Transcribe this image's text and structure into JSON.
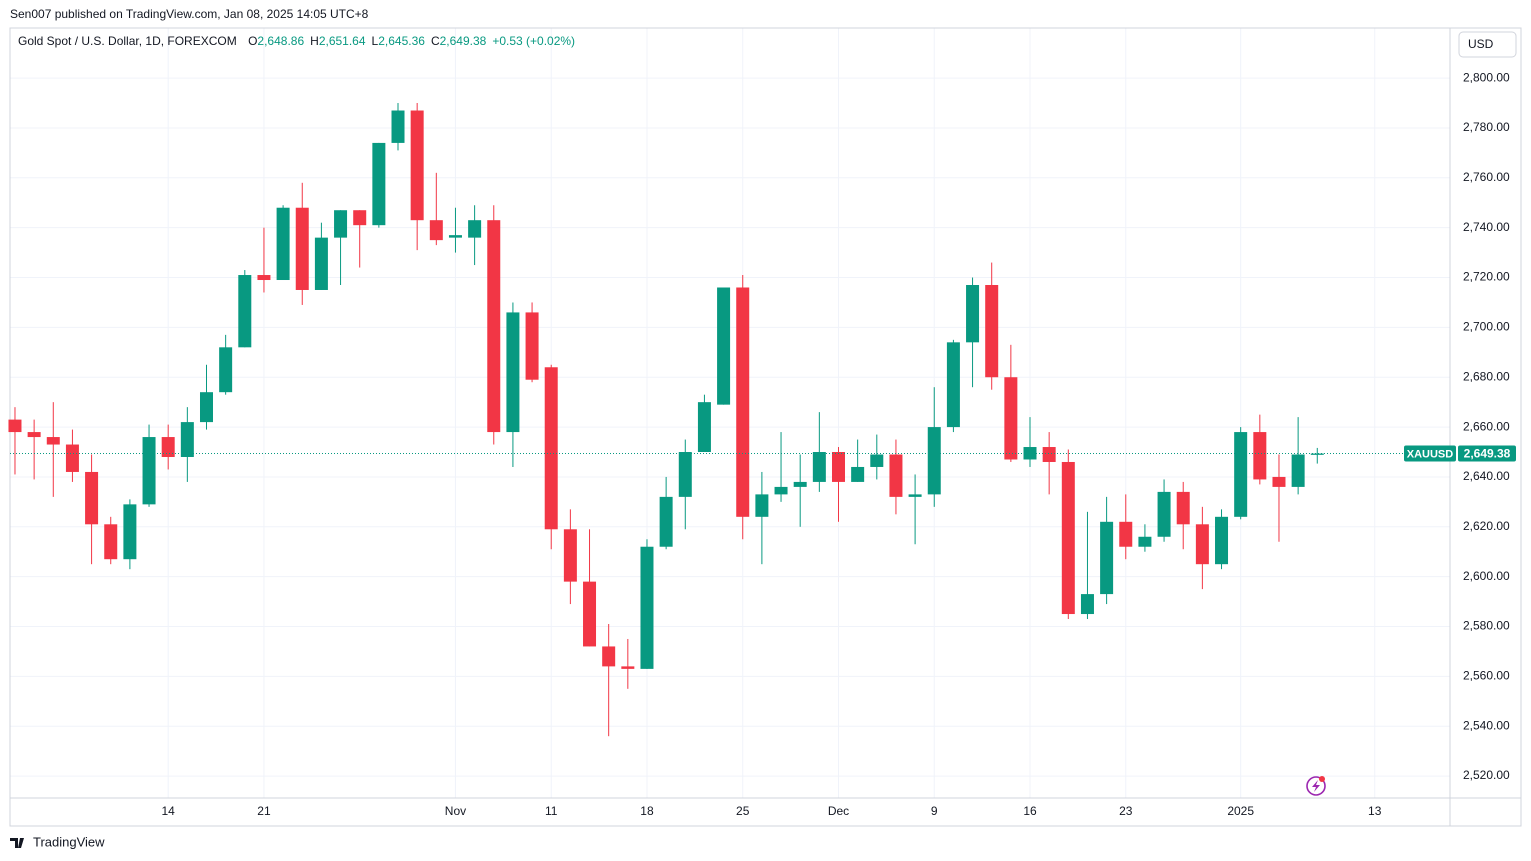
{
  "header": {
    "published": "Sen007 published on TradingView.com, Jan 08, 2025 14:05 UTC+8",
    "symbol_title": "Gold Spot / U.S. Dollar, 1D, FOREXCOM",
    "ohlc": [
      {
        "label": "O",
        "value": "2,648.86"
      },
      {
        "label": "H",
        "value": "2,651.64"
      },
      {
        "label": "L",
        "value": "2,645.36"
      },
      {
        "label": "C",
        "value": "2,649.38"
      }
    ],
    "change": "+0.53 (+0.02%)",
    "currency": "USD"
  },
  "chart_data": {
    "type": "candlestick",
    "up_color": "#089981",
    "down_color": "#f23645",
    "grid": true,
    "open": [
      2663,
      2658,
      2656,
      2653,
      2642,
      2621,
      2607,
      2629,
      2656,
      2648,
      2662,
      2674,
      2692,
      2721,
      2719,
      2748,
      2715,
      2736,
      2747,
      2741,
      2774,
      2787,
      2743,
      2736,
      2736,
      2743,
      2658,
      2706,
      2684,
      2619,
      2598,
      2572,
      2564,
      2563,
      2612,
      2632,
      2650,
      2669,
      2716,
      2624,
      2633,
      2636,
      2638,
      2650,
      2638,
      2644,
      2649,
      2632,
      2633,
      2660,
      2694,
      2717,
      2680,
      2647,
      2652,
      2646,
      2585,
      2593,
      2622,
      2612,
      2616,
      2634,
      2621,
      2605,
      2624,
      2658,
      2640,
      2636,
      2648.86
    ],
    "high": [
      2668,
      2663,
      2670,
      2659,
      2649,
      2624,
      2631,
      2661,
      2661,
      2668,
      2685,
      2697,
      2723,
      2740,
      2749,
      2758,
      2742,
      2747,
      2747,
      2774,
      2790,
      2790,
      2762,
      2748,
      2749,
      2749,
      2710,
      2710,
      2685,
      2627,
      2619,
      2581,
      2575,
      2615,
      2640,
      2655,
      2673,
      2716,
      2721,
      2642,
      2658,
      2649,
      2666,
      2652,
      2655,
      2657,
      2655,
      2641,
      2676,
      2695,
      2720,
      2726,
      2693,
      2664,
      2658,
      2651,
      2626,
      2632,
      2633,
      2621,
      2639,
      2638,
      2628,
      2627,
      2660,
      2665,
      2649,
      2664,
      2651.64
    ],
    "low": [
      2641,
      2639,
      2632,
      2638,
      2605,
      2605,
      2603,
      2628,
      2643,
      2638,
      2659,
      2673,
      2692,
      2714,
      2719,
      2709,
      2715,
      2717,
      2724,
      2740,
      2771,
      2731,
      2733,
      2730,
      2725,
      2653,
      2644,
      2678,
      2611,
      2589,
      2572,
      2536,
      2555,
      2563,
      2611,
      2619,
      2650,
      2669,
      2615,
      2605,
      2630,
      2620,
      2634,
      2622,
      2638,
      2639,
      2625,
      2613,
      2628,
      2658,
      2676,
      2675,
      2646,
      2644,
      2633,
      2583,
      2583,
      2589,
      2607,
      2610,
      2614,
      2611,
      2595,
      2603,
      2623,
      2637,
      2614,
      2633,
      2645.36
    ],
    "close": [
      2658,
      2656,
      2653,
      2642,
      2621,
      2607,
      2629,
      2656,
      2648,
      2662,
      2674,
      2692,
      2721,
      2719,
      2748,
      2715,
      2736,
      2747,
      2741,
      2774,
      2787,
      2743,
      2735,
      2737,
      2743,
      2658,
      2706,
      2679,
      2619,
      2598,
      2572,
      2564,
      2563,
      2612,
      2632,
      2650,
      2670,
      2716,
      2624,
      2633,
      2636,
      2638,
      2650,
      2638,
      2644,
      2649,
      2632,
      2633,
      2660,
      2694,
      2717,
      2680,
      2647,
      2652,
      2646,
      2585,
      2593,
      2622,
      2612,
      2616,
      2634,
      2621,
      2605,
      2624,
      2658,
      2639,
      2636,
      2649,
      2649.38
    ],
    "xlim": [
      -0.26,
      74.93
    ],
    "xticks": [
      {
        "value": 8,
        "label": "14"
      },
      {
        "value": 13,
        "label": "21"
      },
      {
        "value": 23,
        "label": "Nov"
      },
      {
        "value": 28,
        "label": "11"
      },
      {
        "value": 33,
        "label": "18"
      },
      {
        "value": 38,
        "label": "25"
      },
      {
        "value": 43,
        "label": "Dec"
      },
      {
        "value": 48,
        "label": "9"
      },
      {
        "value": 53,
        "label": "16"
      },
      {
        "value": 58,
        "label": "23"
      },
      {
        "value": 64,
        "label": "2025"
      },
      {
        "value": 71,
        "label": "13"
      }
    ],
    "ylim": [
      2511.2,
      2820.1
    ],
    "yticks": [
      {
        "value": 2520,
        "label": "2,520.00"
      },
      {
        "value": 2540,
        "label": "2,540.00"
      },
      {
        "value": 2560,
        "label": "2,560.00"
      },
      {
        "value": 2580,
        "label": "2,580.00"
      },
      {
        "value": 2600,
        "label": "2,600.00"
      },
      {
        "value": 2620,
        "label": "2,620.00"
      },
      {
        "value": 2640,
        "label": "2,640.00"
      },
      {
        "value": 2660,
        "label": "2,660.00"
      },
      {
        "value": 2680,
        "label": "2,680.00"
      },
      {
        "value": 2700,
        "label": "2,700.00"
      },
      {
        "value": 2720,
        "label": "2,720.00"
      },
      {
        "value": 2740,
        "label": "2,740.00"
      },
      {
        "value": 2760,
        "label": "2,760.00"
      },
      {
        "value": 2780,
        "label": "2,780.00"
      },
      {
        "value": 2800,
        "label": "2,800.00"
      }
    ],
    "symbol": "XAUUSD",
    "last_price": {
      "value": 2649.38,
      "label": "2,649.38"
    }
  },
  "footer": {
    "brand": "TradingView"
  }
}
